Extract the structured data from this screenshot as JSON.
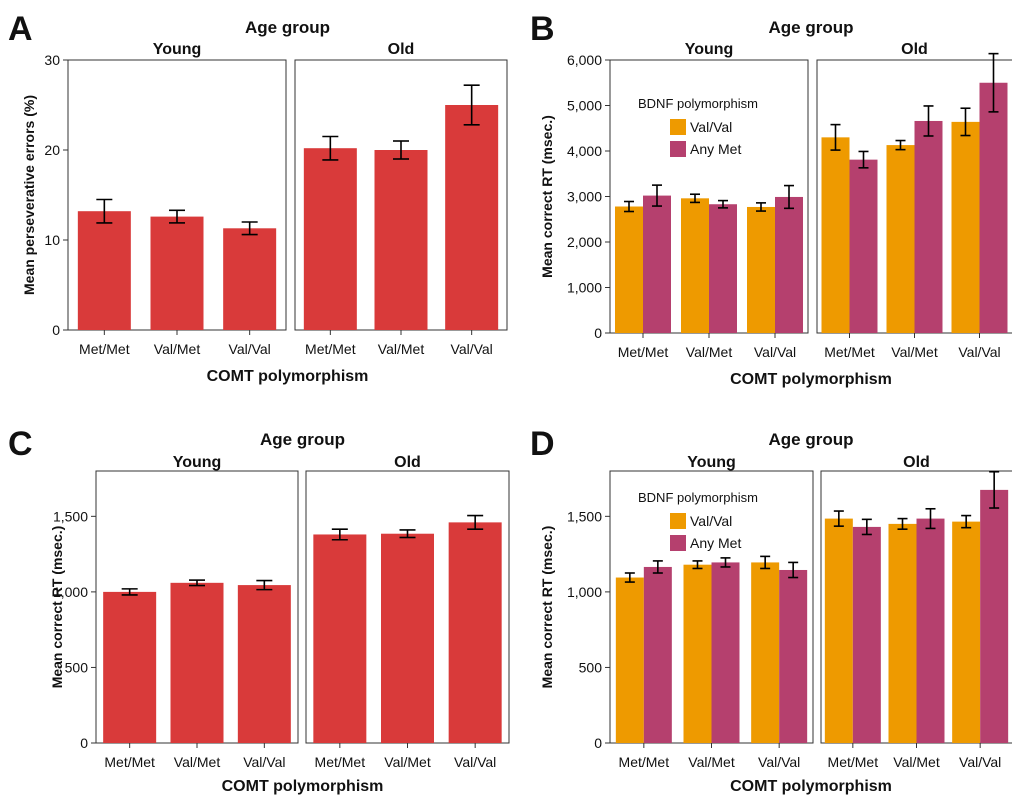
{
  "colors": {
    "single": "#D93A3A",
    "val_val": "#EE9A00",
    "any_met": "#B5406E"
  },
  "chart_data": [
    {
      "panel": "A",
      "type": "bar",
      "title": "Age group",
      "facets": [
        "Young",
        "Old"
      ],
      "categories": [
        "Met/Met",
        "Val/Met",
        "Val/Val"
      ],
      "xlabel": "COMT polymorphism",
      "ylabel": "Mean perseverative errors (%)",
      "ylim": [
        0,
        30
      ],
      "yticks": [
        0,
        10,
        20,
        30
      ],
      "ytick_labels": [
        "0",
        "10",
        "20",
        "30"
      ],
      "series": [
        {
          "color": "single",
          "values": [
            [
              13.2,
              12.6,
              11.3
            ],
            [
              20.2,
              20.0,
              25.0
            ]
          ],
          "errors": [
            [
              1.3,
              0.7,
              0.7
            ],
            [
              1.3,
              1.0,
              2.2
            ]
          ]
        }
      ]
    },
    {
      "panel": "B",
      "type": "bar",
      "title": "Age group",
      "facets": [
        "Young",
        "Old"
      ],
      "categories": [
        "Met/Met",
        "Val/Met",
        "Val/Val"
      ],
      "xlabel": "COMT polymorphism",
      "ylabel": "Mean correct RT (msec.)",
      "ylim": [
        0,
        6000
      ],
      "yticks": [
        0,
        1000,
        2000,
        3000,
        4000,
        5000,
        6000
      ],
      "ytick_labels": [
        "0",
        "1,000",
        "2,000",
        "3,000",
        "4,000",
        "5,000",
        "6,000"
      ],
      "legend": {
        "title": "BDNF polymorphism",
        "placement": "top-left"
      },
      "series": [
        {
          "name": "Val/Val",
          "color": "val_val",
          "values": [
            [
              2780,
              2960,
              2770
            ],
            [
              4300,
              4130,
              4640
            ]
          ],
          "errors": [
            [
              110,
              90,
              90
            ],
            [
              280,
              100,
              300
            ]
          ]
        },
        {
          "name": "Any Met",
          "color": "any_met",
          "values": [
            [
              3020,
              2830,
              2990
            ],
            [
              3810,
              4660,
              5500
            ]
          ],
          "errors": [
            [
              230,
              80,
              250
            ],
            [
              180,
              330,
              640
            ]
          ]
        }
      ]
    },
    {
      "panel": "C",
      "type": "bar",
      "title": "Age group",
      "facets": [
        "Young",
        "Old"
      ],
      "categories": [
        "Met/Met",
        "Val/Met",
        "Val/Val"
      ],
      "xlabel": "COMT polymorphism",
      "ylabel": "Mean correct RT (msec.)",
      "ylim": [
        0,
        1800
      ],
      "yticks": [
        0,
        500,
        1000,
        1500
      ],
      "ytick_labels": [
        "0",
        "500",
        "1,000",
        "1,500"
      ],
      "series": [
        {
          "color": "single",
          "values": [
            [
              1000,
              1060,
              1045
            ],
            [
              1380,
              1385,
              1460
            ]
          ],
          "errors": [
            [
              20,
              18,
              30
            ],
            [
              35,
              25,
              45
            ]
          ]
        }
      ]
    },
    {
      "panel": "D",
      "type": "bar",
      "title": "Age group",
      "facets": [
        "Young",
        "Old"
      ],
      "categories": [
        "Met/Met",
        "Val/Met",
        "Val/Val"
      ],
      "xlabel": "COMT polymorphism",
      "ylabel": "Mean correct RT (msec.)",
      "ylim": [
        0,
        1800
      ],
      "yticks": [
        0,
        500,
        1000,
        1500
      ],
      "ytick_labels": [
        "0",
        "500",
        "1,000",
        "1,500"
      ],
      "legend": {
        "title": "BDNF polymorphism",
        "placement": "top-left"
      },
      "series": [
        {
          "name": "Val/Val",
          "color": "val_val",
          "values": [
            [
              1095,
              1180,
              1195
            ],
            [
              1485,
              1450,
              1465
            ]
          ],
          "errors": [
            [
              30,
              25,
              40
            ],
            [
              50,
              35,
              40
            ]
          ]
        },
        {
          "name": "Any Met",
          "color": "any_met",
          "values": [
            [
              1165,
              1195,
              1145
            ],
            [
              1430,
              1485,
              1675
            ]
          ],
          "errors": [
            [
              40,
              30,
              50
            ],
            [
              50,
              65,
              120
            ]
          ]
        }
      ]
    }
  ]
}
